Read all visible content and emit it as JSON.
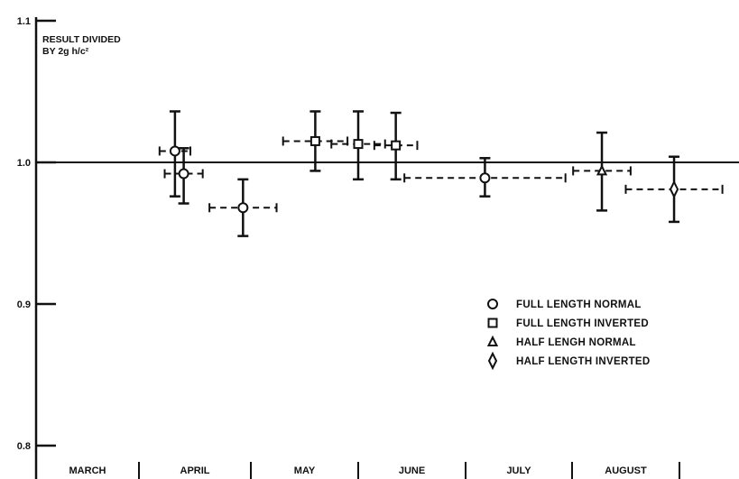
{
  "chart_data": {
    "type": "scatter",
    "ylabel_lines": [
      "RESULT DIVIDED",
      "BY 2g h/c²"
    ],
    "ylim": [
      0.8,
      1.1
    ],
    "y_ticks": [
      {
        "value": 1.1,
        "label": "1.1"
      },
      {
        "value": 1.0,
        "label": "1.0"
      },
      {
        "value": 0.9,
        "label": "0.9"
      },
      {
        "value": 0.8,
        "label": "0.8"
      }
    ],
    "reference_line": 1.0,
    "x_categories": [
      "MARCH",
      "APRIL",
      "MAY",
      "JUNE",
      "JULY",
      "AUGUST"
    ],
    "series": [
      {
        "name": "FULL LENGTH NORMAL",
        "marker": "circle",
        "points": [
          {
            "month": "MARCH",
            "month_pos": 0.85,
            "x_err": 0.15,
            "y": 1.008,
            "y_low": 0.976,
            "y_high": 1.036
          },
          {
            "month": "APRIL",
            "month_pos": -0.1,
            "x_err": 0.17,
            "y": 0.992,
            "y_low": 0.971,
            "y_high": 1.01
          },
          {
            "month": "APRIL",
            "month_pos": 0.43,
            "x_err": 0.3,
            "y": 0.968,
            "y_low": 0.948,
            "y_high": 0.988
          },
          {
            "month": "JUNE",
            "month_pos": 0.68,
            "x_err": 0.75,
            "y": 0.989,
            "y_low": 0.976,
            "y_high": 1.003
          }
        ]
      },
      {
        "name": "FULL LENGTH INVERTED",
        "marker": "square",
        "points": [
          {
            "month": "MAY",
            "month_pos": 0.1,
            "x_err": 0.3,
            "y": 1.015,
            "y_low": 0.994,
            "y_high": 1.036
          },
          {
            "month": "MAY",
            "month_pos": 0.5,
            "x_err": 0.25,
            "y": 1.013,
            "y_low": 0.988,
            "y_high": 1.036
          },
          {
            "month": "MAY",
            "month_pos": 0.85,
            "x_err": 0.2,
            "y": 1.012,
            "y_low": 0.988,
            "y_high": 1.035
          }
        ]
      },
      {
        "name": "HALF LENGH NORMAL",
        "marker": "triangle",
        "points": [
          {
            "month": "JULY",
            "month_pos": 0.78,
            "x_err": 0.27,
            "y": 0.994,
            "y_low": 0.966,
            "y_high": 1.021
          }
        ]
      },
      {
        "name": "HALF LENGTH INVERTED",
        "marker": "diamond",
        "points": [
          {
            "month": "AUGUST",
            "month_pos": 0.45,
            "x_err": 0.45,
            "y": 0.981,
            "y_low": 0.958,
            "y_high": 1.004
          }
        ]
      }
    ],
    "legend_position": "center-right",
    "grid": false
  }
}
